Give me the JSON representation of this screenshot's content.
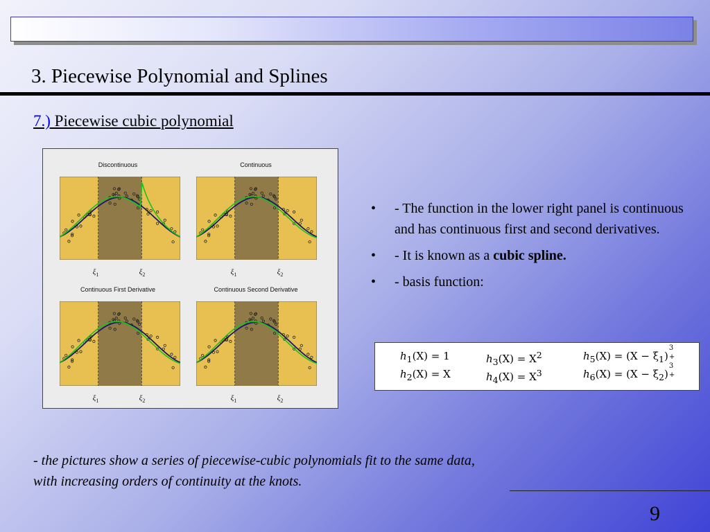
{
  "slide": {
    "title": "3. Piecewise Polynomial and Splines",
    "subtitle_number": "7.)",
    "subtitle_text": " Piecewise cubic polynomial",
    "page_number": "9"
  },
  "figure": {
    "panels": [
      {
        "title": "Discontinuous",
        "knot1": "ξ",
        "knot1_sub": "1",
        "knot2": "ξ",
        "knot2_sub": "2"
      },
      {
        "title": "Continuous",
        "knot1": "ξ",
        "knot1_sub": "1",
        "knot2": "ξ",
        "knot2_sub": "2"
      },
      {
        "title": "Continuous First Derivative",
        "knot1": "ξ",
        "knot1_sub": "1",
        "knot2": "ξ",
        "knot2_sub": "2"
      },
      {
        "title": "Continuous Second Derivative",
        "knot1": "ξ",
        "knot1_sub": "1",
        "knot2": "ξ",
        "knot2_sub": "2"
      }
    ],
    "colors": {
      "outer_region": "#e8c052",
      "middle_region": "#8f7a48",
      "fit_curve": "#1ec01e",
      "true_curve": "#1a1a66"
    }
  },
  "bullets": [
    {
      "text": "- The function in the lower right panel is continuous and has continuous first and second derivatives."
    },
    {
      "text_before": "- It is known as a ",
      "bold": "cubic spline."
    },
    {
      "text": "- basis function:"
    }
  ],
  "basis": {
    "h1": {
      "lhs": "h",
      "sub": "1",
      "arg": "(X) = 1"
    },
    "h2": {
      "lhs": "h",
      "sub": "2",
      "arg": "(X) = X"
    },
    "h3": {
      "lhs": "h",
      "sub": "3",
      "arg": "(X) = X",
      "sup": "2"
    },
    "h4": {
      "lhs": "h",
      "sub": "4",
      "arg": "(X) = X",
      "sup": "3"
    },
    "h5": {
      "lhs": "h",
      "sub": "5",
      "arg": "(X) = (X − ξ",
      "xi_sub": "1",
      "close": ")",
      "sup": "3",
      "plus": "+"
    },
    "h6": {
      "lhs": "h",
      "sub": "6",
      "arg": "(X) = (X − ξ",
      "xi_sub": "2",
      "close": ")",
      "sup": "3",
      "plus": "+"
    }
  },
  "caption": {
    "line1": "- the pictures show a series of piecewise-cubic polynomials fit to the same data,",
    "line2": "with increasing orders of continuity at the knots."
  }
}
